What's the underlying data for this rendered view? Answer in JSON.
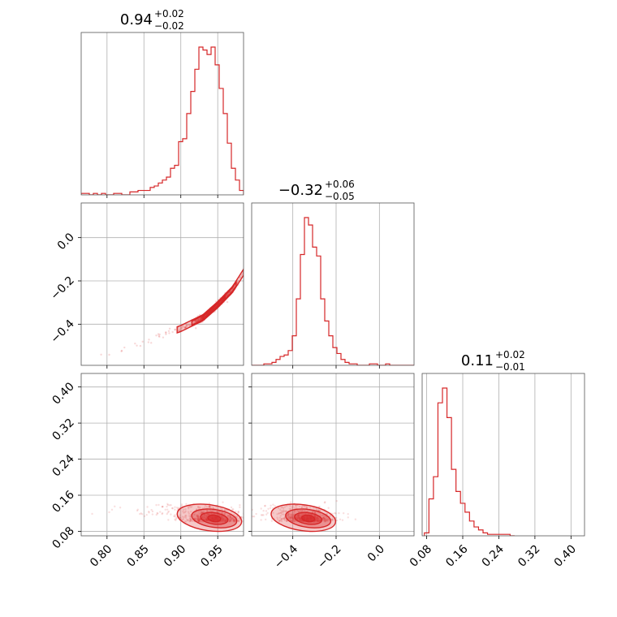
{
  "figure": {
    "colors": {
      "series": "#d62728",
      "grid": "#b0b0b0",
      "frame": "#555555"
    }
  },
  "chart_data": [
    {
      "type": "histogram",
      "panel": "diag-0",
      "title": {
        "value": "0.94",
        "plus": "+0.02",
        "minus": "−0.02"
      },
      "xlim": [
        0.765,
        0.985
      ],
      "x_ticks": [
        0.8,
        0.85,
        0.9,
        0.95
      ],
      "x_tick_labels": [],
      "grid": true,
      "bins_range": [
        0.765,
        0.985
      ],
      "counts": [
        1,
        1,
        0,
        1,
        0,
        1,
        0,
        0,
        1,
        1,
        0,
        0,
        2,
        2,
        3,
        3,
        3,
        5,
        6,
        8,
        10,
        12,
        18,
        20,
        36,
        38,
        55,
        70,
        85,
        100,
        98,
        95,
        100,
        88,
        72,
        55,
        35,
        18,
        10,
        3
      ]
    },
    {
      "type": "scatter-contour",
      "panel": "lower-1-0",
      "x_param": 0,
      "y_param": 1,
      "xlim": [
        0.765,
        0.985
      ],
      "ylim": [
        -0.59,
        0.16
      ],
      "x_ticks": [
        0.8,
        0.85,
        0.9,
        0.95
      ],
      "x_tick_labels": [],
      "y_ticks": [
        -0.4,
        -0.2,
        0.0
      ],
      "y_tick_labels": [
        "−0.4",
        "−0.2",
        "0.0"
      ],
      "grid": true,
      "relation": {
        "x": [
          0.77,
          0.85,
          0.9,
          0.93,
          0.95,
          0.97,
          0.985
        ],
        "y": [
          -0.58,
          -0.48,
          -0.42,
          -0.37,
          -0.31,
          -0.24,
          -0.16
        ]
      },
      "peak": [
        0.945,
        -0.33
      ],
      "contour_levels": [
        0.39,
        0.86,
        0.99
      ]
    },
    {
      "type": "scatter-contour",
      "panel": "lower-2-0",
      "x_param": 0,
      "y_param": 2,
      "xlim": [
        0.765,
        0.985
      ],
      "ylim": [
        0.07,
        0.43
      ],
      "x_ticks": [
        0.8,
        0.85,
        0.9,
        0.95
      ],
      "x_tick_labels": [
        "0.80",
        "0.85",
        "0.90",
        "0.95"
      ],
      "y_ticks": [
        0.08,
        0.16,
        0.24,
        0.32,
        0.4
      ],
      "y_tick_labels": [
        "0.08",
        "0.16",
        "0.24",
        "0.32",
        "0.40"
      ],
      "grid": true,
      "peak": [
        0.945,
        0.105
      ],
      "contour_levels": [
        0.39,
        0.86,
        0.99
      ]
    },
    {
      "type": "histogram",
      "panel": "diag-1",
      "title": {
        "value": "−0.32",
        "plus": "+0.06",
        "minus": "−0.05"
      },
      "xlim": [
        -0.59,
        0.16
      ],
      "x_ticks": [
        -0.4,
        -0.2,
        0.0
      ],
      "x_tick_labels": [],
      "grid": true,
      "bins_range": [
        -0.59,
        0.16
      ],
      "counts": [
        0,
        0,
        0,
        1,
        1,
        2,
        4,
        6,
        7,
        10,
        20,
        45,
        75,
        100,
        95,
        80,
        74,
        45,
        30,
        20,
        12,
        8,
        4,
        2,
        1,
        1,
        0,
        0,
        0,
        1,
        1,
        0,
        0,
        1,
        0,
        0,
        0,
        0,
        0,
        0
      ]
    },
    {
      "type": "scatter-contour",
      "panel": "lower-2-1",
      "x_param": 1,
      "y_param": 2,
      "xlim": [
        -0.59,
        0.16
      ],
      "ylim": [
        0.07,
        0.43
      ],
      "x_ticks": [
        -0.4,
        -0.2,
        0.0
      ],
      "x_tick_labels": [
        "−0.4",
        "−0.2",
        "0.0"
      ],
      "y_ticks": [
        0.08,
        0.16,
        0.24,
        0.32,
        0.4
      ],
      "y_tick_labels": [],
      "grid": true,
      "peak": [
        -0.33,
        0.105
      ],
      "contour_levels": [
        0.39,
        0.86,
        0.99
      ]
    },
    {
      "type": "histogram",
      "panel": "diag-2",
      "title": {
        "value": "0.11",
        "plus": "+0.02",
        "minus": "−0.01"
      },
      "xlim": [
        0.07,
        0.43
      ],
      "x_ticks": [
        0.08,
        0.16,
        0.24,
        0.32,
        0.4
      ],
      "x_tick_labels": [
        "0.08",
        "0.16",
        "0.24",
        "0.32",
        "0.40"
      ],
      "grid": true,
      "bins_range": [
        0.075,
        0.275
      ],
      "counts": [
        2,
        25,
        40,
        90,
        100,
        80,
        45,
        30,
        22,
        16,
        10,
        6,
        4,
        2,
        1,
        1,
        1,
        1,
        1,
        0
      ]
    }
  ]
}
